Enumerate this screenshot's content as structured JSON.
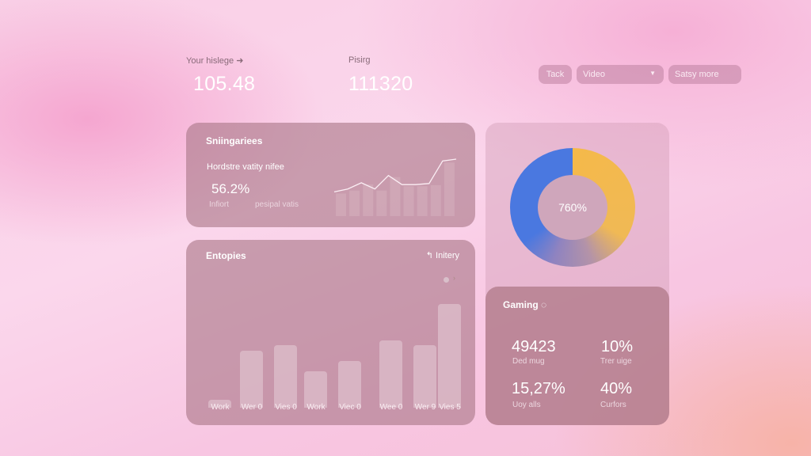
{
  "header": {
    "metric1_label": "Your hislege",
    "metric1_value": "105.48",
    "metric2_label": "Pisirg",
    "metric2_value": "111320"
  },
  "toolbar": {
    "tack_label": "Tack",
    "video_select": "Video",
    "more_label": "Satsy more"
  },
  "summary_card": {
    "title": "Sniingariees",
    "subtitle": "Hordstre vatity nifee",
    "value": "56.2%",
    "label_left": "Infiort",
    "label_right": "pesipal vatis",
    "sparkline": [
      0.1,
      0.18,
      0.35,
      0.18,
      0.55,
      0.3,
      0.3,
      0.33,
      0.95,
      1.0
    ]
  },
  "donut": {
    "center_label": "760%",
    "colors": {
      "blue": "#4a78e0",
      "yellow": "#f5b94a",
      "purple": "#9c83b8"
    }
  },
  "chart_data": {
    "type": "bar",
    "title": "Entopies",
    "action_label": "Initery",
    "categories": [
      "Work",
      "Wer 0",
      "Vies 0",
      "Work",
      "Viec 0",
      "Wee 0",
      "Wer 9",
      "Vies 5"
    ],
    "values": [
      3,
      22,
      24,
      14,
      18,
      26,
      24,
      40
    ]
  },
  "gaming": {
    "title": "Gaming",
    "stats": [
      {
        "value": "49423",
        "label": "Ded mug"
      },
      {
        "value": "10%",
        "label": "Trer uige"
      },
      {
        "value": "15,27%",
        "label": "Uoy alls"
      },
      {
        "value": "40%",
        "label": "Curfors"
      }
    ]
  }
}
